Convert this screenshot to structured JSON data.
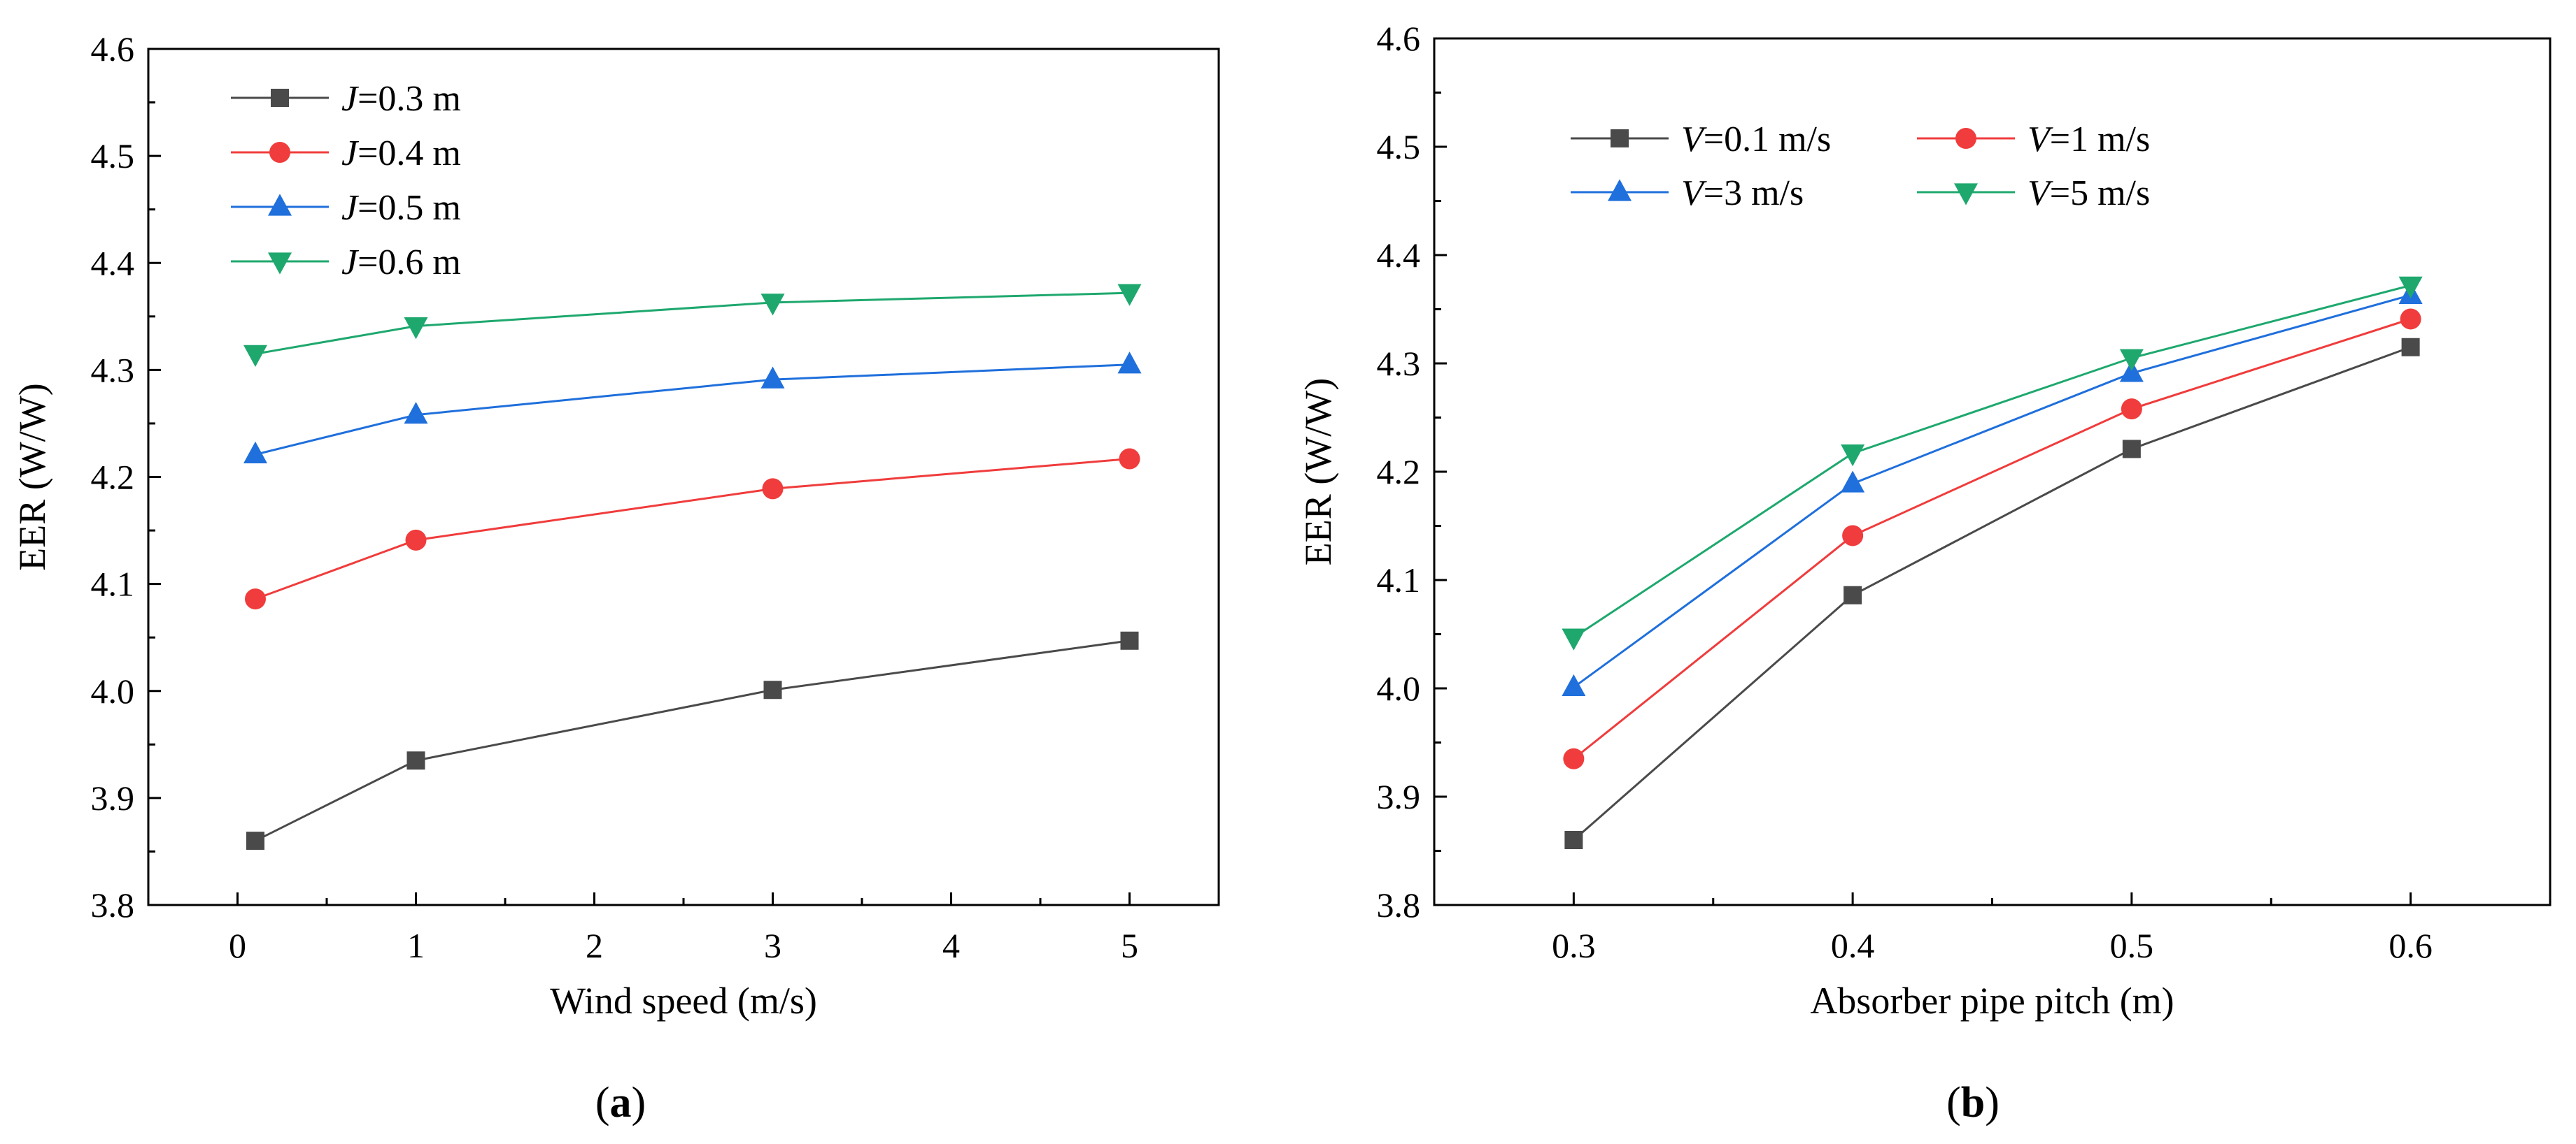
{
  "charts": [
    {
      "panel_label_open": "(",
      "panel_label_letter": "a",
      "panel_label_close": ")",
      "chart_data": {
        "type": "line",
        "xlabel": "Wind speed (m/s)",
        "ylabel": "EER (W/W)",
        "xlim": [
          -0.5,
          5.5
        ],
        "ylim": [
          3.8,
          4.6
        ],
        "x_ticks": [
          0,
          1,
          2,
          3,
          4,
          5
        ],
        "y_ticks": [
          3.8,
          3.9,
          4.0,
          4.1,
          4.2,
          4.3,
          4.4,
          4.5,
          4.6
        ],
        "x_tick_labels": [
          "0",
          "1",
          "2",
          "3",
          "4",
          "5"
        ],
        "y_tick_labels": [
          "3.8",
          "3.9",
          "4.0",
          "4.1",
          "4.2",
          "4.3",
          "4.4",
          "4.5",
          "4.6"
        ],
        "grid": false,
        "legend_position": "top-left",
        "x": [
          0.1,
          1,
          3,
          5
        ],
        "series": [
          {
            "name_var": "J",
            "name_rest": "=0.3 m",
            "marker": "square",
            "color": "#4a4a4a",
            "values": [
              3.86,
              3.935,
              4.001,
              4.047
            ]
          },
          {
            "name_var": "J",
            "name_rest": "=0.4 m",
            "marker": "circle",
            "color": "#f03c3c",
            "values": [
              4.086,
              4.141,
              4.189,
              4.217
            ]
          },
          {
            "name_var": "J",
            "name_rest": "=0.5 m",
            "marker": "triangle-up",
            "color": "#1f6fdc",
            "values": [
              4.221,
              4.258,
              4.291,
              4.305
            ]
          },
          {
            "name_var": "J",
            "name_rest": "=0.6 m",
            "marker": "triangle-down",
            "color": "#1ea86e",
            "values": [
              4.315,
              4.341,
              4.363,
              4.372
            ]
          }
        ]
      }
    },
    {
      "panel_label_open": "(",
      "panel_label_letter": "b",
      "panel_label_close": ")",
      "chart_data": {
        "type": "line",
        "xlabel": "Absorber pipe pitch (m)",
        "ylabel": "EER (W/W)",
        "xlim": [
          0.25,
          0.65
        ],
        "ylim": [
          3.8,
          4.6
        ],
        "x_ticks": [
          0.3,
          0.4,
          0.5,
          0.6
        ],
        "y_ticks": [
          3.8,
          3.9,
          4.0,
          4.1,
          4.2,
          4.3,
          4.4,
          4.5,
          4.6
        ],
        "x_tick_labels": [
          "0.3",
          "0.4",
          "0.5",
          "0.6"
        ],
        "y_tick_labels": [
          "3.8",
          "3.9",
          "4.0",
          "4.1",
          "4.2",
          "4.3",
          "4.4",
          "4.5",
          "4.6"
        ],
        "grid": false,
        "legend_position": "top-left",
        "x": [
          0.3,
          0.4,
          0.5,
          0.6
        ],
        "series": [
          {
            "name_var": "V",
            "name_rest": "=0.1 m/s",
            "marker": "square",
            "color": "#4a4a4a",
            "values": [
              3.86,
              4.086,
              4.221,
              4.315
            ]
          },
          {
            "name_var": "V",
            "name_rest": "=1 m/s",
            "marker": "circle",
            "color": "#f03c3c",
            "values": [
              3.935,
              4.141,
              4.258,
              4.341
            ]
          },
          {
            "name_var": "V",
            "name_rest": "=3 m/s",
            "marker": "triangle-up",
            "color": "#1f6fdc",
            "values": [
              4.001,
              4.189,
              4.291,
              4.363
            ]
          },
          {
            "name_var": "V",
            "name_rest": "=5 m/s",
            "marker": "triangle-down",
            "color": "#1ea86e",
            "values": [
              4.047,
              4.217,
              4.305,
              4.372
            ]
          }
        ]
      }
    }
  ]
}
